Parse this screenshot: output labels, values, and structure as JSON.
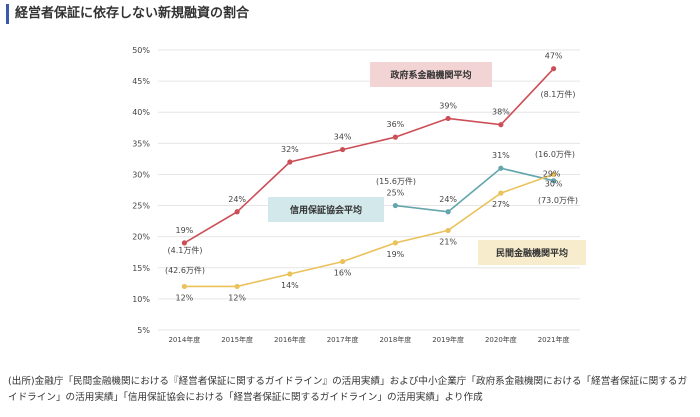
{
  "page": {
    "title": "経営者保証に依存しない新規融資の割合",
    "source": "(出所)金融庁「民間金融機関における『経営者保証に関するガイドライン』の活用実績」および中小企業庁「政府系金融機関における「経営者保証に関するガイドライン」の活用実績」「信用保証協会における「経営者保証に関するガイドライン」の活用実績」より作成"
  },
  "chart_data": {
    "type": "line",
    "categories": [
      "2014年度",
      "2015年度",
      "2016年度",
      "2017年度",
      "2018年度",
      "2019年度",
      "2020年度",
      "2021年度"
    ],
    "ylim": [
      5,
      50
    ],
    "yticks": [
      "5%",
      "10%",
      "15%",
      "20%",
      "25%",
      "30%",
      "35%",
      "40%",
      "45%",
      "50%"
    ],
    "grid": true,
    "series": [
      {
        "name": "政府系金融機関平均",
        "color": "#cc4e57",
        "label_bg": "#f3d4d5",
        "values": [
          19,
          24,
          32,
          34,
          36,
          39,
          38,
          47
        ],
        "labels": [
          "19%",
          "24%",
          "32%",
          "34%",
          "36%",
          "39%",
          "38%",
          "47%"
        ]
      },
      {
        "name": "信用保証協会平均",
        "color": "#64a6ad",
        "label_bg": "#d3e8ea",
        "values": [
          null,
          null,
          null,
          null,
          25,
          24,
          31,
          29
        ],
        "labels": [
          null,
          null,
          null,
          null,
          "25%",
          "24%",
          "31%",
          "29%"
        ]
      },
      {
        "name": "民間金融機関平均",
        "color": "#ebc15a",
        "label_bg": "#f7edcc",
        "values": [
          12,
          12,
          14,
          16,
          19,
          21,
          27,
          30
        ],
        "labels": [
          "12%",
          "12%",
          "14%",
          "16%",
          "19%",
          "21%",
          "27%",
          "30%"
        ]
      }
    ],
    "annotations": [
      "(4.1万件)",
      "(42.6万件)",
      "(15.6万件)",
      "(8.1万件)",
      "(16.0万件)",
      "(73.0万件)"
    ]
  }
}
